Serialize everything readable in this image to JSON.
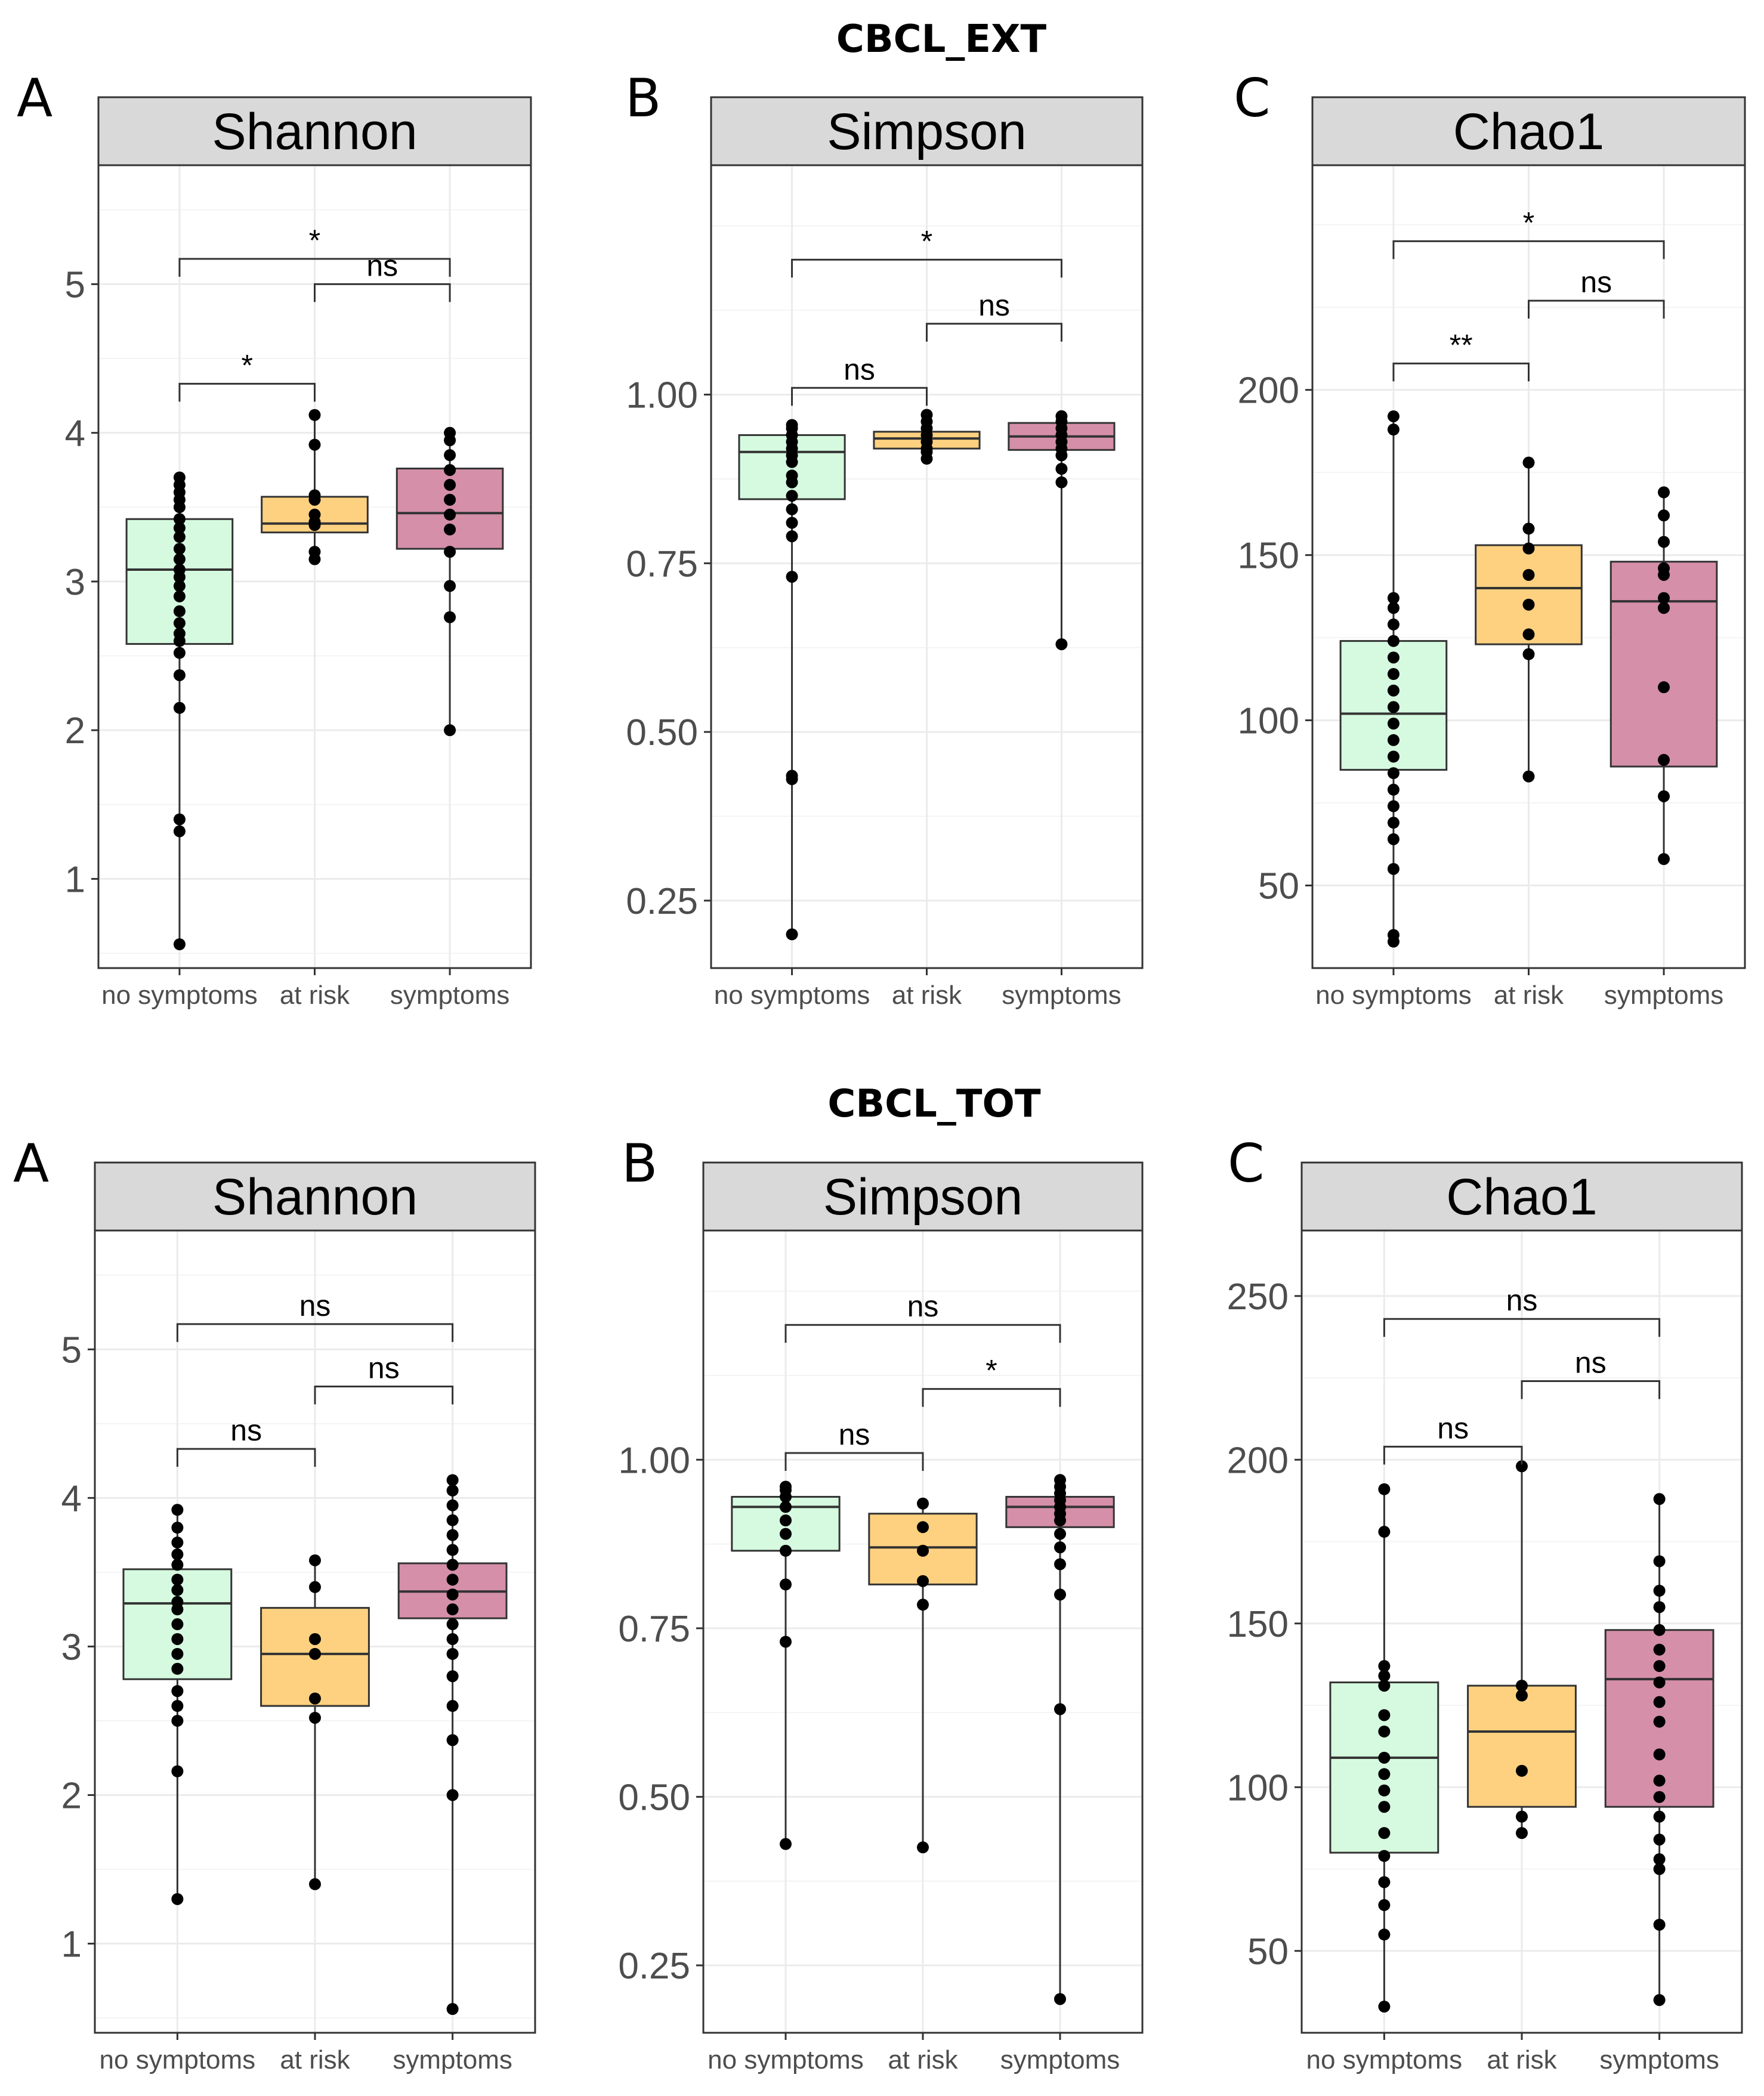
{
  "chart_data": [
    {
      "type": "box",
      "section": "CBCL_EXT",
      "letter": "A",
      "title": "Shannon",
      "categories": [
        "no symptoms",
        "at risk",
        "symptoms"
      ],
      "ylim": [
        0.4,
        5.8
      ],
      "yticks": [
        1,
        2,
        3,
        4,
        5
      ],
      "ytick_labels": [
        "1",
        "2",
        "3",
        "4",
        "5"
      ],
      "boxes": [
        {
          "q1": 2.58,
          "median": 3.08,
          "q3": 3.42,
          "min": 0.56,
          "max": 3.7
        },
        {
          "q1": 3.33,
          "median": 3.39,
          "q3": 3.57,
          "min": 3.15,
          "max": 4.12
        },
        {
          "q1": 3.22,
          "median": 3.46,
          "q3": 3.76,
          "min": 2.0,
          "max": 4.0
        }
      ],
      "points": [
        [
          0.56,
          1.32,
          1.4,
          2.15,
          2.37,
          2.52,
          2.6,
          2.65,
          2.72,
          2.8,
          2.9,
          2.97,
          3.03,
          3.08,
          3.15,
          3.22,
          3.3,
          3.36,
          3.42,
          3.5,
          3.55,
          3.6,
          3.65,
          3.7
        ],
        [
          3.15,
          3.2,
          3.38,
          3.4,
          3.45,
          3.55,
          3.58,
          3.92,
          4.12
        ],
        [
          2.0,
          2.76,
          2.97,
          3.2,
          3.35,
          3.45,
          3.55,
          3.65,
          3.75,
          3.85,
          3.95,
          4.0
        ]
      ],
      "comparisons": [
        {
          "from": 0,
          "to": 1,
          "label": "*",
          "y": 4.33
        },
        {
          "from": 1,
          "to": 2,
          "label": "ns",
          "y": 5.0
        },
        {
          "from": 0,
          "to": 2,
          "label": "*",
          "y": 5.17
        }
      ]
    },
    {
      "type": "box",
      "section": "CBCL_EXT",
      "letter": "B",
      "title": "Simpson",
      "categories": [
        "no symptoms",
        "at risk",
        "symptoms"
      ],
      "ylim": [
        0.15,
        1.34
      ],
      "yticks": [
        0.25,
        0.5,
        0.75,
        1.0
      ],
      "ytick_labels": [
        "0.25",
        "0.50",
        "0.75",
        "1.00"
      ],
      "boxes": [
        {
          "q1": 0.845,
          "median": 0.915,
          "q3": 0.94,
          "min": 0.2,
          "max": 0.955
        },
        {
          "q1": 0.92,
          "median": 0.935,
          "q3": 0.945,
          "min": 0.905,
          "max": 0.97
        },
        {
          "q1": 0.918,
          "median": 0.938,
          "q3": 0.958,
          "min": 0.63,
          "max": 0.968
        }
      ],
      "points": [
        [
          0.2,
          0.43,
          0.435,
          0.73,
          0.79,
          0.81,
          0.83,
          0.85,
          0.87,
          0.88,
          0.9,
          0.91,
          0.92,
          0.93,
          0.94,
          0.95,
          0.955
        ],
        [
          0.905,
          0.915,
          0.92,
          0.93,
          0.94,
          0.95,
          0.96,
          0.97
        ],
        [
          0.63,
          0.87,
          0.89,
          0.91,
          0.92,
          0.93,
          0.94,
          0.95,
          0.96,
          0.968
        ]
      ],
      "comparisons": [
        {
          "from": 0,
          "to": 1,
          "label": "ns",
          "y": 1.01
        },
        {
          "from": 1,
          "to": 2,
          "label": "ns",
          "y": 1.105
        },
        {
          "from": 0,
          "to": 2,
          "label": "*",
          "y": 1.2
        }
      ]
    },
    {
      "type": "box",
      "section": "CBCL_EXT",
      "letter": "C",
      "title": "Chao1",
      "categories": [
        "no symptoms",
        "at risk",
        "symptoms"
      ],
      "ylim": [
        25,
        268
      ],
      "yticks": [
        50,
        100,
        150,
        200
      ],
      "ytick_labels": [
        "50",
        "100",
        "150",
        "200"
      ],
      "boxes": [
        {
          "q1": 85,
          "median": 102,
          "q3": 124,
          "min": 33,
          "max": 192
        },
        {
          "q1": 123,
          "median": 140,
          "q3": 153,
          "min": 83,
          "max": 178
        },
        {
          "q1": 86,
          "median": 136,
          "q3": 148,
          "min": 58,
          "max": 169
        }
      ],
      "points": [
        [
          33,
          35,
          55,
          64,
          69,
          74,
          79,
          84,
          89,
          94,
          99,
          104,
          109,
          114,
          119,
          124,
          129,
          134,
          137,
          188,
          192
        ],
        [
          83,
          120,
          126,
          135,
          144,
          152,
          158,
          178
        ],
        [
          58,
          77,
          88,
          110,
          134,
          137,
          144,
          146,
          154,
          162,
          169
        ]
      ],
      "comparisons": [
        {
          "from": 0,
          "to": 1,
          "label": "**",
          "y": 208
        },
        {
          "from": 1,
          "to": 2,
          "label": "ns",
          "y": 227
        },
        {
          "from": 0,
          "to": 2,
          "label": "*",
          "y": 245
        }
      ]
    },
    {
      "type": "box",
      "section": "CBCL_TOT",
      "letter": "A",
      "title": "Shannon",
      "categories": [
        "no symptoms",
        "at risk",
        "symptoms"
      ],
      "ylim": [
        0.4,
        5.8
      ],
      "yticks": [
        1,
        2,
        3,
        4,
        5
      ],
      "ytick_labels": [
        "1",
        "2",
        "3",
        "4",
        "5"
      ],
      "boxes": [
        {
          "q1": 2.78,
          "median": 3.29,
          "q3": 3.52,
          "min": 1.3,
          "max": 3.92
        },
        {
          "q1": 2.6,
          "median": 2.95,
          "q3": 3.26,
          "min": 1.4,
          "max": 3.58
        },
        {
          "q1": 3.19,
          "median": 3.37,
          "q3": 3.56,
          "min": 0.56,
          "max": 4.12
        }
      ],
      "points": [
        [
          1.3,
          2.16,
          2.5,
          2.6,
          2.7,
          2.85,
          2.95,
          3.05,
          3.15,
          3.25,
          3.3,
          3.38,
          3.45,
          3.55,
          3.62,
          3.7,
          3.8,
          3.92
        ],
        [
          1.4,
          2.52,
          2.65,
          2.95,
          3.05,
          3.4,
          3.58
        ],
        [
          0.56,
          2.0,
          2.37,
          2.6,
          2.8,
          2.95,
          3.05,
          3.15,
          3.25,
          3.35,
          3.45,
          3.55,
          3.65,
          3.75,
          3.85,
          3.95,
          4.05,
          4.12
        ]
      ],
      "comparisons": [
        {
          "from": 0,
          "to": 1,
          "label": "ns",
          "y": 4.33
        },
        {
          "from": 1,
          "to": 2,
          "label": "ns",
          "y": 4.75
        },
        {
          "from": 0,
          "to": 2,
          "label": "ns",
          "y": 5.17
        }
      ]
    },
    {
      "type": "box",
      "section": "CBCL_TOT",
      "letter": "B",
      "title": "Simpson",
      "categories": [
        "no symptoms",
        "at risk",
        "symptoms"
      ],
      "ylim": [
        0.15,
        1.34
      ],
      "yticks": [
        0.25,
        0.5,
        0.75,
        1.0
      ],
      "ytick_labels": [
        "0.25",
        "0.50",
        "0.75",
        "1.00"
      ],
      "boxes": [
        {
          "q1": 0.865,
          "median": 0.93,
          "q3": 0.945,
          "min": 0.43,
          "max": 0.96
        },
        {
          "q1": 0.815,
          "median": 0.87,
          "q3": 0.92,
          "min": 0.425,
          "max": 0.935
        },
        {
          "q1": 0.9,
          "median": 0.93,
          "q3": 0.945,
          "min": 0.2,
          "max": 0.97
        }
      ],
      "points": [
        [
          0.43,
          0.73,
          0.815,
          0.865,
          0.89,
          0.91,
          0.93,
          0.945,
          0.955,
          0.96
        ],
        [
          0.425,
          0.785,
          0.82,
          0.865,
          0.9,
          0.935
        ],
        [
          0.2,
          0.63,
          0.8,
          0.845,
          0.87,
          0.89,
          0.91,
          0.92,
          0.93,
          0.94,
          0.95,
          0.96,
          0.97
        ]
      ],
      "comparisons": [
        {
          "from": 0,
          "to": 1,
          "label": "ns",
          "y": 1.01
        },
        {
          "from": 1,
          "to": 2,
          "label": "*",
          "y": 1.105
        },
        {
          "from": 0,
          "to": 2,
          "label": "ns",
          "y": 1.2
        }
      ]
    },
    {
      "type": "box",
      "section": "CBCL_TOT",
      "letter": "C",
      "title": "Chao1",
      "categories": [
        "no symptoms",
        "at risk",
        "symptoms"
      ],
      "ylim": [
        25,
        270
      ],
      "yticks": [
        50,
        100,
        150,
        200,
        250
      ],
      "ytick_labels": [
        "50",
        "100",
        "150",
        "200",
        "250"
      ],
      "boxes": [
        {
          "q1": 80,
          "median": 109,
          "q3": 132,
          "min": 33,
          "max": 191
        },
        {
          "q1": 94,
          "median": 117,
          "q3": 131,
          "min": 86,
          "max": 198
        },
        {
          "q1": 94,
          "median": 133,
          "q3": 148,
          "min": 35,
          "max": 188
        }
      ],
      "points": [
        [
          33,
          55,
          64,
          71,
          79,
          86,
          94,
          99,
          104,
          109,
          117,
          122,
          131,
          134,
          137,
          178,
          191
        ],
        [
          86,
          91,
          105,
          128,
          131,
          198
        ],
        [
          35,
          58,
          75,
          78,
          84,
          91,
          97,
          102,
          110,
          120,
          126,
          132,
          137,
          142,
          148,
          155,
          160,
          169,
          188
        ]
      ],
      "comparisons": [
        {
          "from": 0,
          "to": 1,
          "label": "ns",
          "y": 204
        },
        {
          "from": 1,
          "to": 2,
          "label": "ns",
          "y": 224
        },
        {
          "from": 0,
          "to": 2,
          "label": "ns",
          "y": 243
        }
      ]
    }
  ],
  "section_titles": [
    "CBCL_EXT",
    "CBCL_TOT"
  ],
  "box_colors": [
    "#d6fadf",
    "#fdd180",
    "#d58fa8"
  ],
  "point_color": "#000000"
}
